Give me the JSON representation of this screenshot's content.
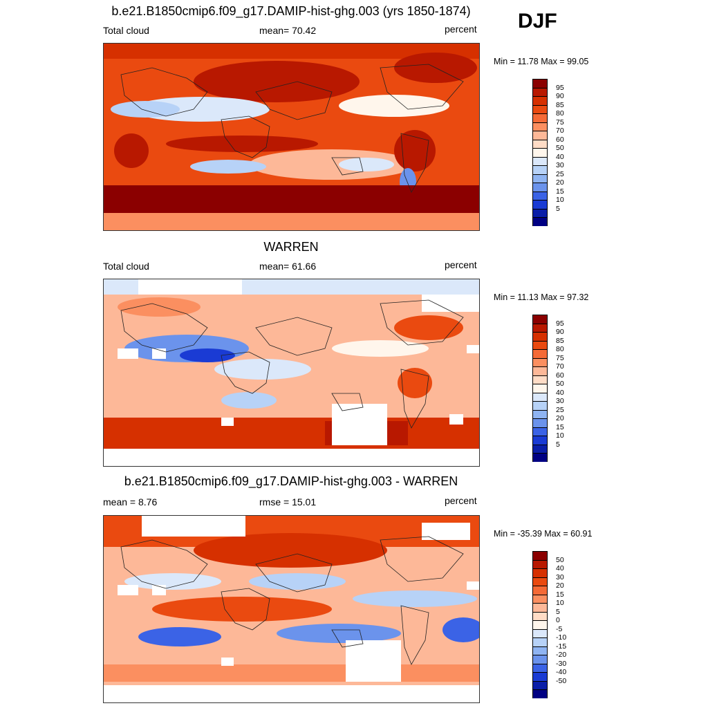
{
  "season": "DJF",
  "panels": [
    {
      "title": "b.e21.B1850cmip6.f09_g17.DAMIP-hist-ghg.003 (yrs 1850-1874)",
      "left_label": "Total cloud",
      "center_label": "mean=  70.42",
      "right_label": "percent",
      "minmax": "Min =  11.78 Max =  99.05",
      "palette": "abs"
    },
    {
      "title": "WARREN",
      "left_label": "Total cloud",
      "center_label": "mean=  61.66",
      "right_label": "percent",
      "minmax": "Min =  11.13 Max =  97.32",
      "palette": "abs"
    },
    {
      "title": "b.e21.B1850cmip6.f09_g17.DAMIP-hist-ghg.003 - WARREN",
      "left_label": "mean =   8.76",
      "center_label": "rmse =  15.01",
      "right_label": "percent",
      "minmax": "Min = -35.39 Max =  60.91",
      "palette": "diff"
    }
  ],
  "colorbars": {
    "abs": {
      "labels": [
        "95",
        "90",
        "85",
        "80",
        "75",
        "70",
        "60",
        "50",
        "40",
        "30",
        "25",
        "20",
        "15",
        "10",
        "5"
      ],
      "colors": [
        "#8b0000",
        "#b81800",
        "#d63000",
        "#ea4a10",
        "#f56a36",
        "#fb8f60",
        "#fdb898",
        "#ffdcc6",
        "#fff6ec",
        "#dbe8fa",
        "#b7d2f7",
        "#8fb4f2",
        "#6b93ec",
        "#3b63e6",
        "#1a3bd4",
        "#0a1ea8",
        "#000083"
      ]
    },
    "diff": {
      "labels": [
        "50",
        "40",
        "30",
        "20",
        "15",
        "10",
        "5",
        "0",
        "-5",
        "-10",
        "-15",
        "-20",
        "-30",
        "-40",
        "-50"
      ],
      "colors": [
        "#8b0000",
        "#b81800",
        "#d63000",
        "#ea4a10",
        "#f56a36",
        "#fb8f60",
        "#fdb898",
        "#ffdcc6",
        "#fff6ec",
        "#dbe8fa",
        "#b7d2f7",
        "#8fb4f2",
        "#6b93ec",
        "#3b63e6",
        "#1a3bd4",
        "#0a1ea8",
        "#000083"
      ]
    }
  }
}
